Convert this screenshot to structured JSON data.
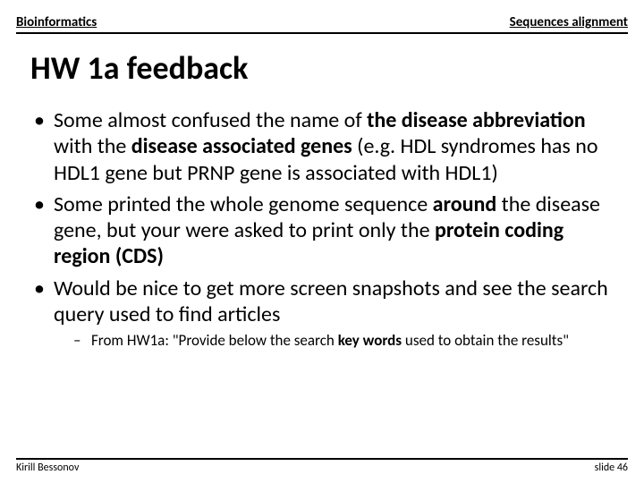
{
  "header": {
    "left": "Bioinformatics",
    "right": "Sequences alignment"
  },
  "title": "HW 1a feedback",
  "bullets": [
    {
      "segments": [
        {
          "t": "Some almost confused the name of ",
          "b": false
        },
        {
          "t": "the disease abbreviation",
          "b": true
        },
        {
          "t": " with the ",
          "b": false
        },
        {
          "t": "disease associated genes",
          "b": true
        },
        {
          "t": " (e.g. HDL syndromes has no HDL1 gene but PRNP gene is associated with HDL1)",
          "b": false
        }
      ]
    },
    {
      "segments": [
        {
          "t": "Some printed the whole genome sequence ",
          "b": false
        },
        {
          "t": "around",
          "b": true
        },
        {
          "t": " the disease gene, but your were asked to print only the ",
          "b": false
        },
        {
          "t": "protein coding  region (CDS)",
          "b": true
        }
      ]
    },
    {
      "segments": [
        {
          "t": "Would be nice to get more screen snapshots and see the search query used to find articles",
          "b": false
        }
      ],
      "sub": [
        {
          "segments": [
            {
              "t": "From HW1a: \"Provide below the search ",
              "b": false
            },
            {
              "t": "key words",
              "b": true
            },
            {
              "t": " used to obtain the results\"",
              "b": false
            }
          ]
        }
      ]
    }
  ],
  "footer": {
    "left": "Kirill Bessonov",
    "right": "slide 46"
  },
  "colors": {
    "text": "#000000",
    "background": "#ffffff",
    "rule": "#000000"
  },
  "typography": {
    "title_fontsize": 36,
    "bullet_fontsize": 24,
    "sub_fontsize": 17,
    "header_fontsize": 15,
    "footer_fontsize": 12,
    "font_family": "Calibri"
  }
}
